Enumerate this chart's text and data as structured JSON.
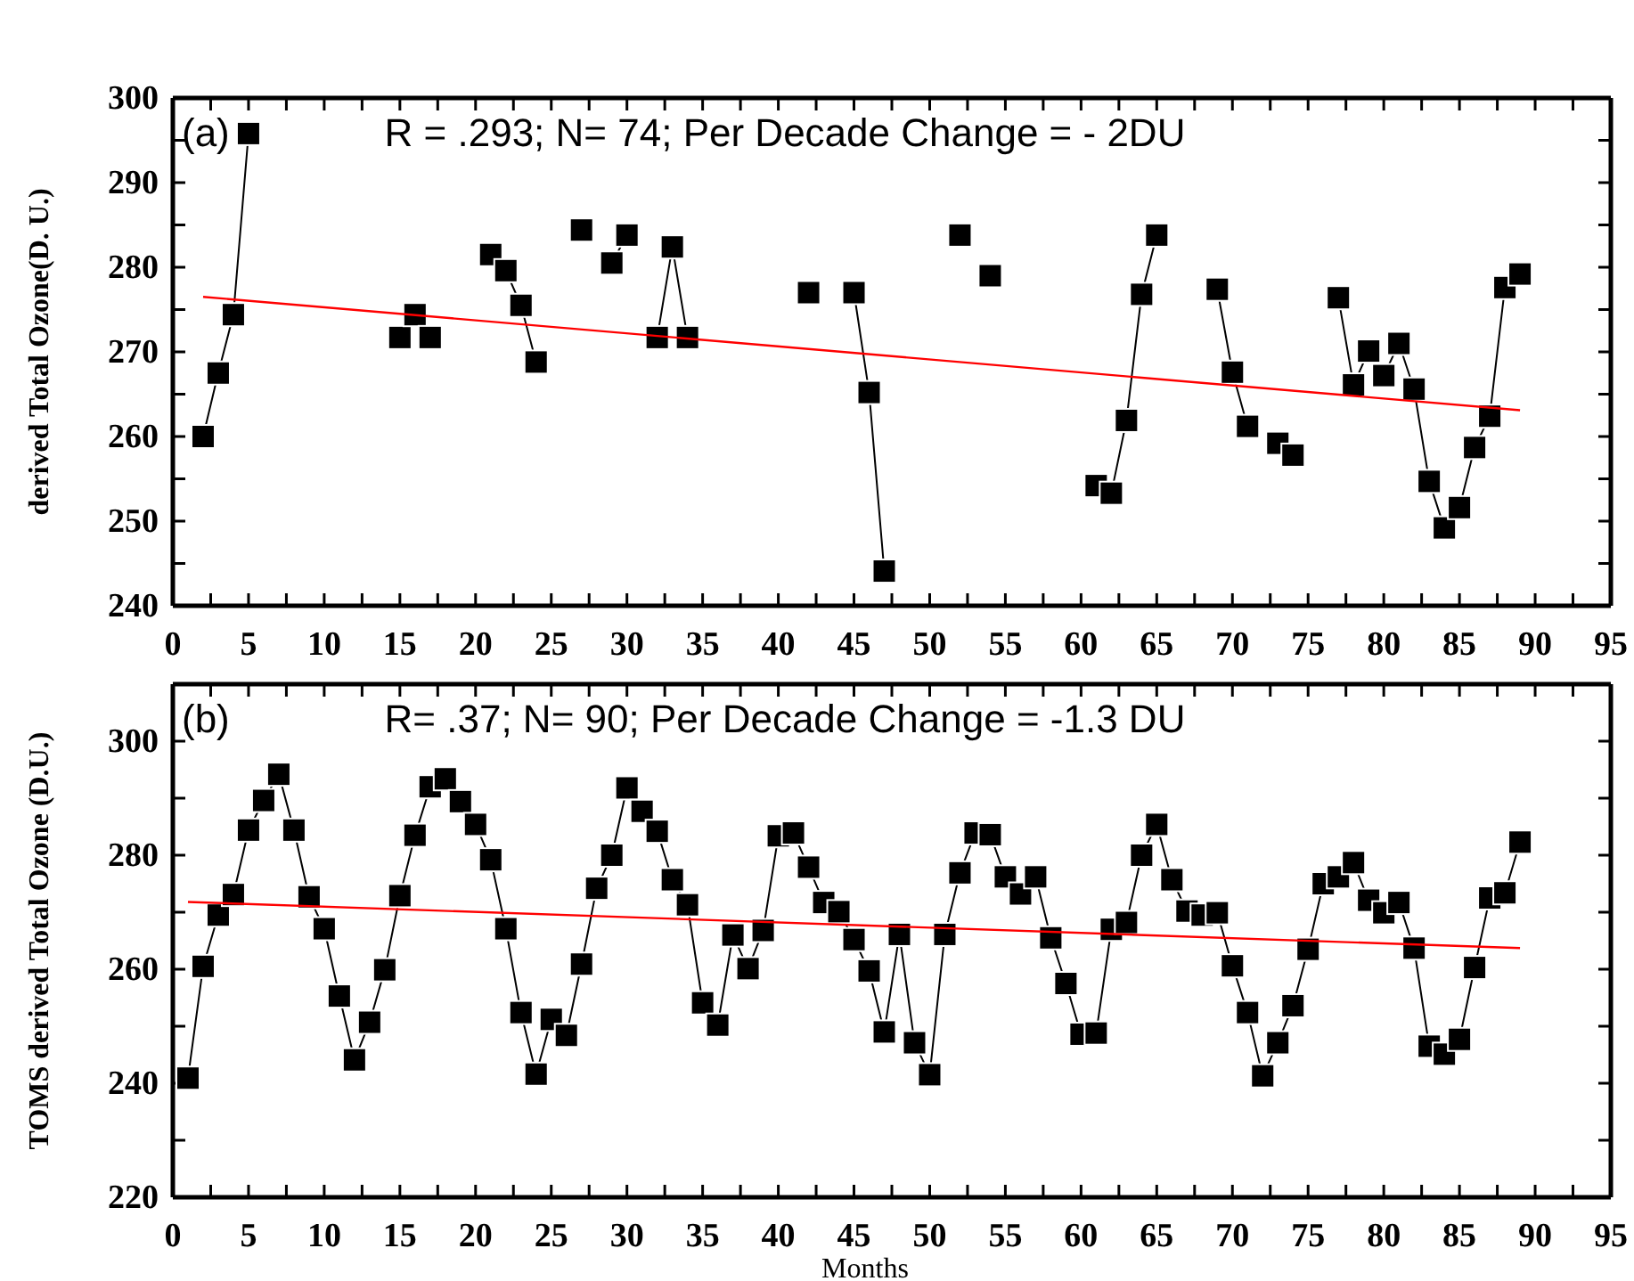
{
  "chart_data": [
    {
      "type": "line",
      "ylabel": "derived Total Ozone(D. U.)",
      "annotations": [
        "(a)",
        "R = .293; N= 74;  Per Decade Change = - 2DU"
      ],
      "x": [
        2,
        3,
        4,
        5,
        6,
        7,
        8,
        9,
        10,
        11,
        12,
        13,
        14,
        15,
        16,
        17,
        18,
        19,
        20,
        21,
        22,
        23,
        24,
        25,
        26,
        27,
        28,
        29,
        30,
        31,
        32,
        33,
        34,
        35,
        36,
        37,
        38,
        39,
        40,
        41,
        42,
        43,
        44,
        45,
        46,
        47,
        48,
        49,
        50,
        51,
        52,
        53,
        54,
        55,
        56,
        57,
        58,
        59,
        60,
        61,
        62,
        63,
        64,
        65,
        66,
        67,
        68,
        69,
        70,
        71,
        72,
        73,
        74,
        75,
        76,
        77,
        78,
        79,
        80,
        81,
        82,
        83,
        84,
        85,
        86,
        87,
        88,
        89
      ],
      "series": [
        {
          "color": "#000000",
          "marker": "square",
          "line_style": "solid",
          "values": [
            260,
            267.5,
            274.4,
            295.8,
            null,
            null,
            null,
            null,
            null,
            null,
            null,
            null,
            null,
            271.7,
            274.4,
            271.7,
            null,
            null,
            null,
            281.5,
            279.6,
            275.5,
            268.8,
            null,
            null,
            284.4,
            null,
            280.5,
            283.8,
            null,
            271.7,
            282.4,
            271.7,
            null,
            null,
            null,
            null,
            null,
            null,
            null,
            277,
            null,
            null,
            277,
            265.2,
            244.1,
            null,
            null,
            null,
            null,
            283.8,
            null,
            279,
            null,
            null,
            null,
            null,
            null,
            null,
            254.2,
            253.3,
            261.9,
            276.8,
            283.8,
            null,
            null,
            null,
            277.4,
            267.6,
            261.2,
            null,
            259.2,
            257.8,
            null,
            null,
            276.4,
            266.1,
            270.1,
            267.2,
            271,
            265.6,
            254.7,
            249.2,
            251.6,
            258.7,
            262.4,
            277.6,
            279.2
          ]
        },
        {
          "type": "line",
          "color": "#ff0000",
          "marker": "none",
          "line_style": "solid",
          "x": [
            2,
            89
          ],
          "values": [
            276.5,
            263.1
          ]
        }
      ],
      "xlim": [
        0,
        95
      ],
      "xticks": [
        0,
        {
          "value": 2.5,
          "label": null
        },
        5,
        {
          "value": 7.5,
          "label": null
        },
        10,
        {
          "value": 12.5,
          "label": null
        },
        15,
        {
          "value": 17.5,
          "label": null
        },
        20,
        {
          "value": 22.5,
          "label": null
        },
        25,
        {
          "value": 27.5,
          "label": null
        },
        30,
        {
          "value": 32.5,
          "label": null
        },
        35,
        {
          "value": 37.5,
          "label": null
        },
        40,
        {
          "value": 42.5,
          "label": null
        },
        45,
        {
          "value": 47.5,
          "label": null
        },
        50,
        {
          "value": 52.5,
          "label": null
        },
        55,
        {
          "value": 57.5,
          "label": null
        },
        60,
        {
          "value": 62.5,
          "label": null
        },
        65,
        {
          "value": 67.5,
          "label": null
        },
        70,
        {
          "value": 72.5,
          "label": null
        },
        75,
        {
          "value": 77.5,
          "label": null
        },
        80,
        {
          "value": 82.5,
          "label": null
        },
        85,
        {
          "value": 87.5,
          "label": null
        },
        90,
        {
          "value": 92.5,
          "label": null
        },
        95
      ],
      "ylim": [
        240,
        300
      ],
      "yticks": [
        240,
        {
          "value": 245,
          "label": null
        },
        250,
        {
          "value": 255,
          "label": null
        },
        260,
        {
          "value": 265,
          "label": null
        },
        270,
        {
          "value": 275,
          "label": null
        },
        280,
        {
          "value": 285,
          "label": null
        },
        290,
        {
          "value": 295,
          "label": null
        },
        300
      ]
    },
    {
      "type": "line",
      "xlabel": "Months",
      "ylabel": "TOMS derived Total Ozone (D.U.)",
      "annotations": [
        "(b)",
        "R= .37; N= 90; Per Decade Change = -1.3 DU"
      ],
      "x": [
        1,
        2,
        3,
        4,
        5,
        6,
        7,
        8,
        9,
        10,
        11,
        12,
        13,
        14,
        15,
        16,
        17,
        18,
        19,
        20,
        21,
        22,
        23,
        24,
        25,
        26,
        27,
        28,
        29,
        30,
        31,
        32,
        33,
        34,
        35,
        36,
        37,
        38,
        39,
        40,
        41,
        42,
        43,
        44,
        45,
        46,
        47,
        48,
        49,
        50,
        51,
        52,
        53,
        54,
        55,
        56,
        57,
        58,
        59,
        60,
        61,
        62,
        63,
        64,
        65,
        66,
        67,
        68,
        69,
        70,
        71,
        72,
        73,
        74,
        75,
        76,
        77,
        78,
        79,
        80,
        81,
        82,
        83,
        84,
        85,
        86,
        87,
        88,
        89
      ],
      "series": [
        {
          "color": "#000000",
          "marker": "square",
          "line_style": "solid",
          "values": [
            240.9,
            260.5,
            269.5,
            273.1,
            284.4,
            289.6,
            294.2,
            284.4,
            272.7,
            267.1,
            255.3,
            244.1,
            250.7,
            259.9,
            272.9,
            283.5,
            292,
            293.4,
            289.4,
            285.4,
            279.2,
            267.1,
            252.4,
            241.6,
            251.2,
            248.4,
            260.9,
            274.2,
            280,
            291.8,
            287.7,
            284.2,
            275.7,
            271.3,
            254.1,
            250.2,
            266,
            260.1,
            266.8,
            283.4,
            283.9,
            277.9,
            271.7,
            270.1,
            265.2,
            259.7,
            249,
            266.1,
            247.1,
            241.5,
            266.1,
            276.9,
            283.9,
            283.6,
            276.2,
            273.2,
            276.2,
            265.5,
            257.5,
            248.6,
            248.8,
            267,
            268.2,
            280,
            285.4,
            275.7,
            270.2,
            269.5,
            269.9,
            260.6,
            252.4,
            241.3,
            247.1,
            253.6,
            263.5,
            275,
            276.2,
            278.7,
            272.1,
            269.9,
            271.7,
            263.7,
            246.5,
            245.1,
            247.7,
            260.3,
            272.5,
            273.4,
            282.3
          ]
        },
        {
          "type": "line",
          "color": "#ff0000",
          "marker": "none",
          "line_style": "solid",
          "x": [
            1,
            89
          ],
          "values": [
            271.8,
            263.7
          ]
        }
      ],
      "xlim": [
        0,
        95
      ],
      "xticks": [
        0,
        {
          "value": 2.5,
          "label": null
        },
        5,
        {
          "value": 7.5,
          "label": null
        },
        10,
        {
          "value": 12.5,
          "label": null
        },
        15,
        {
          "value": 17.5,
          "label": null
        },
        20,
        {
          "value": 22.5,
          "label": null
        },
        25,
        {
          "value": 27.5,
          "label": null
        },
        30,
        {
          "value": 32.5,
          "label": null
        },
        35,
        {
          "value": 37.5,
          "label": null
        },
        40,
        {
          "value": 42.5,
          "label": null
        },
        45,
        {
          "value": 47.5,
          "label": null
        },
        50,
        {
          "value": 52.5,
          "label": null
        },
        55,
        {
          "value": 57.5,
          "label": null
        },
        60,
        {
          "value": 62.5,
          "label": null
        },
        65,
        {
          "value": 67.5,
          "label": null
        },
        70,
        {
          "value": 72.5,
          "label": null
        },
        75,
        {
          "value": 77.5,
          "label": null
        },
        80,
        {
          "value": 82.5,
          "label": null
        },
        85,
        {
          "value": 87.5,
          "label": null
        },
        90,
        {
          "value": 92.5,
          "label": null
        },
        95
      ],
      "ylim": [
        220,
        310
      ],
      "yticks": [
        220,
        {
          "value": 230,
          "label": null
        },
        240,
        {
          "value": 250,
          "label": null
        },
        260,
        {
          "value": 270,
          "label": null
        },
        280,
        {
          "value": 290,
          "label": null
        },
        300
      ]
    }
  ]
}
